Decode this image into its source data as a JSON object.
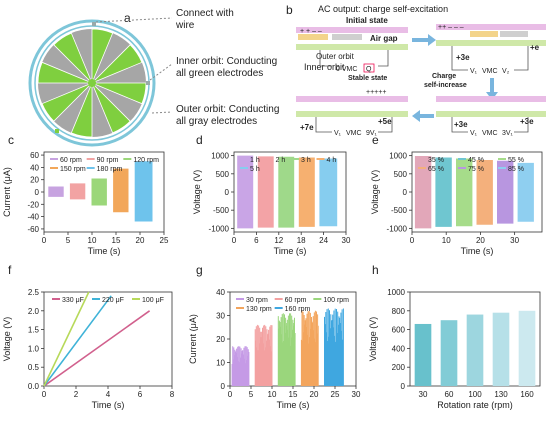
{
  "panel_a": {
    "letter": "a",
    "callouts": [
      {
        "line1": "Connect with",
        "line2": "wire"
      },
      {
        "line1": "Inner orbit: Conducting",
        "line2": "all green electrodes"
      },
      {
        "line1": "Outer orbit: Conducting",
        "line2": "all gray electrodes"
      }
    ],
    "colors": {
      "green": "#7fcf3f",
      "gray": "#a6a6a6",
      "ring": "#7ec6d9"
    }
  },
  "panel_b": {
    "letter": "b",
    "title": "AC output: charge self-excitation",
    "initial_state": "Initial state",
    "air_gap": "Air gap",
    "outer_orbit": "Outer orbit",
    "inner_orbit": "Inner orbit",
    "stable_state": "Stable state",
    "charge_self_increase_1": "Charge",
    "charge_self_increase_2": "self-increase",
    "vmc": "VMC",
    "zero_vmc": "0 VMC",
    "q0": "Q",
    "e_plus3_a": "+3e",
    "e_plus_e": "+e",
    "e_plus7": "+7e",
    "e_plus5": "+5e",
    "e_plus3_b": "+3e",
    "e_plus3_c": "+3e",
    "v1": "V₁",
    "v2": "V₂",
    "v5": "5V₁",
    "v3": "3V₁",
    "v7": "V₁",
    "v9": "9V₁"
  },
  "charts": {
    "c": {
      "letter": "c",
      "type": "bar",
      "ylabel": "Current (μA)",
      "xlabel": "Time (s)",
      "xlim": [
        0,
        25
      ],
      "ylim": [
        -65,
        65
      ],
      "xticks": [
        "0",
        "5",
        "10",
        "15",
        "20",
        "25"
      ],
      "yticks": [
        "-60",
        "-40",
        "-20",
        "0",
        "20",
        "40",
        "60"
      ],
      "legend": [
        "60 rpm",
        "90 rpm",
        "120 rpm",
        "150 rpm",
        "180 rpm"
      ],
      "segments": [
        {
          "x0": 1.0,
          "x1": 4.0,
          "ymin": -8,
          "ymax": 9,
          "color": "#c7a3e0"
        },
        {
          "x0": 5.5,
          "x1": 8.5,
          "ymin": -12,
          "ymax": 14,
          "color": "#f2a3a3"
        },
        {
          "x0": 10.0,
          "x1": 13.0,
          "ymin": -22,
          "ymax": 22,
          "color": "#9bd77a"
        },
        {
          "x0": 14.5,
          "x1": 17.5,
          "ymin": -33,
          "ymax": 38,
          "color": "#f2a75a"
        },
        {
          "x0": 19.0,
          "x1": 22.5,
          "ymin": -48,
          "ymax": 50,
          "color": "#6ec3ec"
        }
      ]
    },
    "d": {
      "letter": "d",
      "type": "bar",
      "ylabel": "Voltage (V)",
      "xlabel": "Time (s)",
      "xlim": [
        0,
        30
      ],
      "ylim": [
        -1100,
        1100
      ],
      "xticks": [
        "0",
        "6",
        "12",
        "18",
        "24",
        "30"
      ],
      "yticks": [
        "-1000",
        "-500",
        "0",
        "500",
        "1000"
      ],
      "legend": [
        "1 h",
        "2 h",
        "3 h",
        "4 h",
        "5 h"
      ],
      "segments": [
        {
          "x0": 1.0,
          "x1": 5.0,
          "ymin": -1000,
          "ymax": 1000,
          "color": "#c9a5e6"
        },
        {
          "x0": 6.5,
          "x1": 10.5,
          "ymin": -980,
          "ymax": 980,
          "color": "#f3a3a6"
        },
        {
          "x0": 12.0,
          "x1": 16.0,
          "ymin": -980,
          "ymax": 970,
          "color": "#9fd98a"
        },
        {
          "x0": 17.5,
          "x1": 21.5,
          "ymin": -960,
          "ymax": 950,
          "color": "#f6b070"
        },
        {
          "x0": 23.0,
          "x1": 27.5,
          "ymin": -940,
          "ymax": 920,
          "color": "#86cdef"
        }
      ]
    },
    "e": {
      "letter": "e",
      "type": "bar",
      "ylabel": "Voltage (V)",
      "xlabel": "Time (s)",
      "xlim": [
        0,
        38
      ],
      "ylim": [
        -1100,
        1100
      ],
      "xticks": [
        "0",
        "10",
        "20",
        "30"
      ],
      "yticks": [
        "-1000",
        "-500",
        "0",
        "500",
        "1000"
      ],
      "legend": [
        "35 %",
        "45 %",
        "55 %",
        "65 %",
        "75 %",
        "85 %"
      ],
      "segments": [
        {
          "x0": 1.0,
          "x1": 5.5,
          "ymin": -1000,
          "ymax": 990,
          "color": "#e2a7b9"
        },
        {
          "x0": 7.0,
          "x1": 11.5,
          "ymin": -960,
          "ymax": 950,
          "color": "#6fc6d0"
        },
        {
          "x0": 13.0,
          "x1": 17.5,
          "ymin": -940,
          "ymax": 920,
          "color": "#a6dc8a"
        },
        {
          "x0": 19.0,
          "x1": 23.5,
          "ymin": -900,
          "ymax": 880,
          "color": "#f4b07c"
        },
        {
          "x0": 25.0,
          "x1": 29.5,
          "ymin": -870,
          "ymax": 860,
          "color": "#b896e0"
        },
        {
          "x0": 31.0,
          "x1": 35.5,
          "ymin": -820,
          "ymax": 800,
          "color": "#8fcff0"
        }
      ]
    },
    "f": {
      "letter": "f",
      "type": "line",
      "ylabel": "Voltage (V)",
      "xlabel": "Time (s)",
      "xlim": [
        0,
        8
      ],
      "ylim": [
        0,
        2.5
      ],
      "xticks": [
        "0",
        "2",
        "4",
        "6",
        "8"
      ],
      "yticks": [
        "0.0",
        "0.5",
        "1.0",
        "1.5",
        "2.0",
        "2.5"
      ],
      "series": [
        {
          "name": "330 μF",
          "color": "#d1608d",
          "x": [
            0,
            6.6
          ],
          "y": [
            0,
            2.0
          ]
        },
        {
          "name": "220 μF",
          "color": "#3fb3d8",
          "x": [
            0,
            4.2
          ],
          "y": [
            0,
            2.4
          ]
        },
        {
          "name": "100 μF",
          "color": "#b7d95a",
          "x": [
            0,
            2.8
          ],
          "y": [
            0,
            2.5
          ]
        }
      ]
    },
    "g": {
      "letter": "g",
      "type": "bar",
      "ylabel": "Current (μA)",
      "xlabel": "Time (s)",
      "xlim": [
        0,
        30
      ],
      "ylim": [
        0,
        40
      ],
      "xticks": [
        "0",
        "5",
        "10",
        "15",
        "20",
        "25",
        "30"
      ],
      "yticks": [
        "0",
        "10",
        "20",
        "30",
        "40"
      ],
      "legend": [
        "30 rpm",
        "60 rpm",
        "100 rpm",
        "130 rpm",
        "160 rpm"
      ],
      "segments": [
        {
          "x0": 0.5,
          "x1": 4.5,
          "ymin": 0,
          "ymax": 17,
          "color": "#c59ae6"
        },
        {
          "x0": 6.0,
          "x1": 10.0,
          "ymin": 0,
          "ymax": 26,
          "color": "#f3a0a0"
        },
        {
          "x0": 11.5,
          "x1": 15.5,
          "ymin": 0,
          "ymax": 31,
          "color": "#9ad67c"
        },
        {
          "x0": 17.0,
          "x1": 21.0,
          "ymin": 0,
          "ymax": 32,
          "color": "#f3a55d"
        },
        {
          "x0": 22.5,
          "x1": 27.0,
          "ymin": 0,
          "ymax": 33,
          "color": "#3fa7e0"
        }
      ]
    },
    "h": {
      "letter": "h",
      "type": "bar",
      "ylabel": "Voltage (V)",
      "xlabel": "Rotation rate (rpm)",
      "ylim": [
        0,
        1000
      ],
      "yticks": [
        "0",
        "200",
        "400",
        "600",
        "800",
        "1000"
      ],
      "categories": [
        "30",
        "60",
        "100",
        "130",
        "160"
      ],
      "values": [
        660,
        700,
        760,
        780,
        800
      ],
      "colors": [
        "#68c1cc",
        "#82ccd6",
        "#9dd6df",
        "#b6e0e8",
        "#cce9ef"
      ]
    }
  }
}
